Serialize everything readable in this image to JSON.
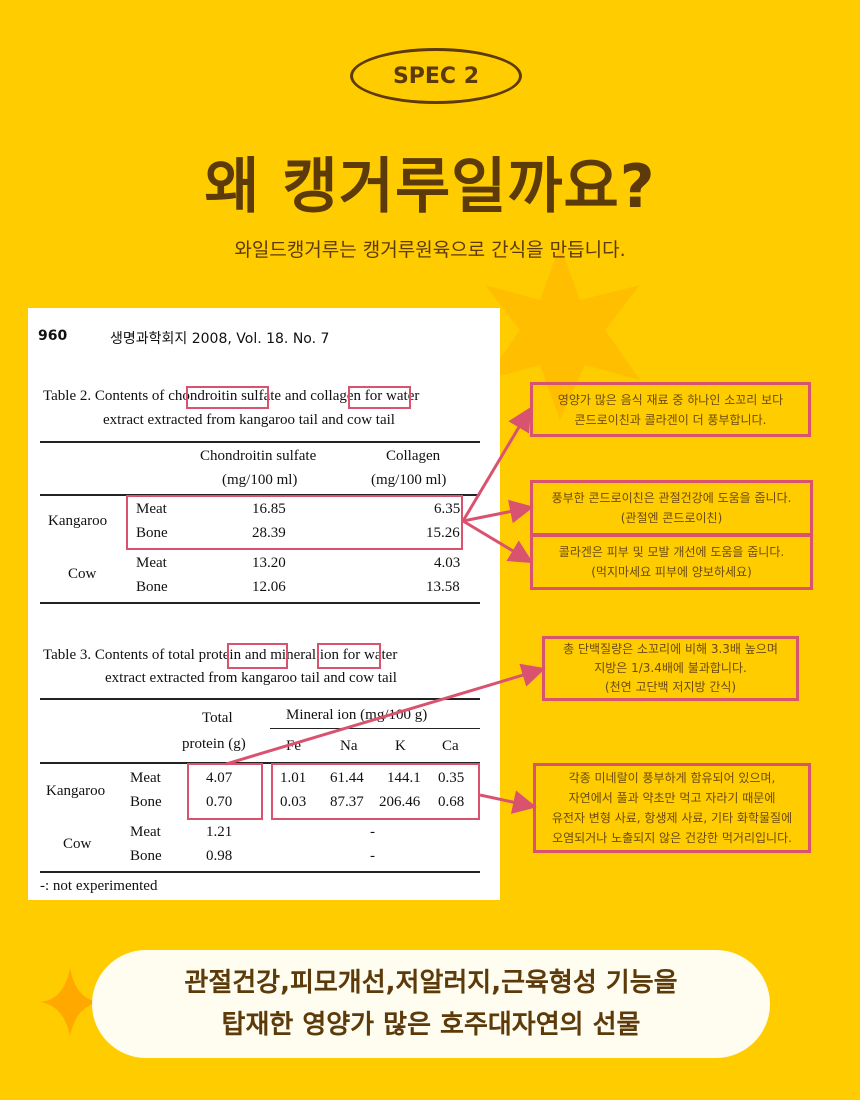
{
  "badge": "SPEC 2",
  "title": "왜 캥거루일까요?",
  "subtitle": "와일드캥거루는 캥거루원육으로 간식을 만듭니다.",
  "colors": {
    "background": "#FFCC00",
    "text": "#5C3A0A",
    "highlight": "#D9536F",
    "pill": "#FFFCF0"
  },
  "paper": {
    "header": {
      "page": "960",
      "journal": "생명과학회지 2008, Vol. 18. No. 7"
    },
    "table2": {
      "caption_parts": [
        "Table 2. Contents of ",
        "chondroitin",
        " sulfate and ",
        "collagen",
        " for water"
      ],
      "caption_line2": "extract extracted from kangaroo tail and cow tail",
      "col1": [
        "Chondroitin sulfate",
        "(mg/100 ml)"
      ],
      "col2": [
        "Collagen",
        "(mg/100 ml)"
      ],
      "rows": [
        {
          "group": "Kangaroo",
          "part": "Meat",
          "cs": "16.85",
          "col": "6.35"
        },
        {
          "group": "",
          "part": "Bone",
          "cs": "28.39",
          "col": "15.26"
        },
        {
          "group": "Cow",
          "part": "Meat",
          "cs": "13.20",
          "col": "4.03"
        },
        {
          "group": "",
          "part": "Bone",
          "cs": "12.06",
          "col": "13.58"
        }
      ]
    },
    "table3": {
      "caption_parts": [
        "Table 3. Contents of total ",
        "protein",
        " and ",
        "mineral",
        " ion for water"
      ],
      "caption_line2": "extract extracted from kangaroo tail and cow tail",
      "protein_header": [
        "Total",
        "protein (g)"
      ],
      "mineral_header": "Mineral ion (mg/100 g)",
      "minerals": [
        "Fe",
        "Na",
        "K",
        "Ca"
      ],
      "rows": [
        {
          "group": "Kangaroo",
          "part": "Meat",
          "protein": "4.07",
          "values": [
            "1.01",
            "61.44",
            "144.1",
            "0.35"
          ]
        },
        {
          "group": "",
          "part": "Bone",
          "protein": "0.70",
          "values": [
            "0.03",
            "87.37",
            "206.46",
            "0.68"
          ]
        },
        {
          "group": "Cow",
          "part": "Meat",
          "protein": "1.21",
          "dash": "-"
        },
        {
          "group": "",
          "part": "Bone",
          "protein": "0.98",
          "dash": "-"
        }
      ],
      "footnote": "-: not experimented"
    }
  },
  "callouts": [
    [
      "영양가 많은 음식 재료 중 하나인 소꼬리 보다",
      "콘드로이친과 콜라겐이 더 풍부합니다."
    ],
    [
      "풍부한 콘드로이친은 관절건강에 도움을 줍니다.",
      "(관절엔 콘드로이친)"
    ],
    [
      "콜라겐은 피부 및 모발 개선에 도움을 줍니다.",
      "(먹지마세요 피부에 양보하세요)"
    ],
    [
      "총 단백질량은 소꼬리에 비해 3.3배 높으며",
      "지방은  1/3.4배에 불과합니다.",
      "(천연 고단백 저지방 간식)"
    ],
    [
      "각종 미네랄이 풍부하게 함유되어 있으며,",
      "자연에서 풀과 약초만 먹고 자라기 때문에",
      "유전자 변형 사료, 항생제 사료, 기타 화학물질에",
      "오염되거나 노출되지 않은 건강한 먹거리입니다."
    ]
  ],
  "bottom": [
    "관절건강,피모개선,저알러지,근육형성 기능을",
    "탑재한 영양가 많은 호주대자연의 선물"
  ]
}
